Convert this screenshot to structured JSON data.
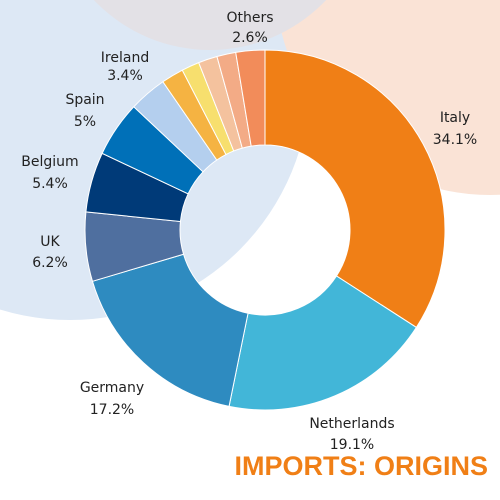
{
  "chart_data": {
    "type": "donut",
    "title": "IMPORTS: ORIGINS",
    "categories": [
      "Italy",
      "Netherlands",
      "Germany",
      "UK",
      "Belgium",
      "Spain",
      "Ireland",
      null,
      null,
      null,
      null,
      "Others"
    ],
    "values": [
      34.1,
      19.1,
      17.2,
      6.2,
      5.4,
      5,
      3.4,
      2.0,
      1.6,
      1.7,
      1.7,
      2.6
    ],
    "value_labels": [
      "34.1%",
      "19.1%",
      "17.2%",
      "6.2%",
      "5.4%",
      "5%",
      "3.4%",
      null,
      null,
      null,
      null,
      "2.6%"
    ],
    "colors": [
      "#f07f16",
      "#42b6d8",
      "#2e8bc0",
      "#4f6f9f",
      "#003a78",
      "#0070b8",
      "#b4cfee",
      "#f5b342",
      "#f7df6e",
      "#f4c29e",
      "#f3ab86",
      "#f28c5a"
    ]
  }
}
